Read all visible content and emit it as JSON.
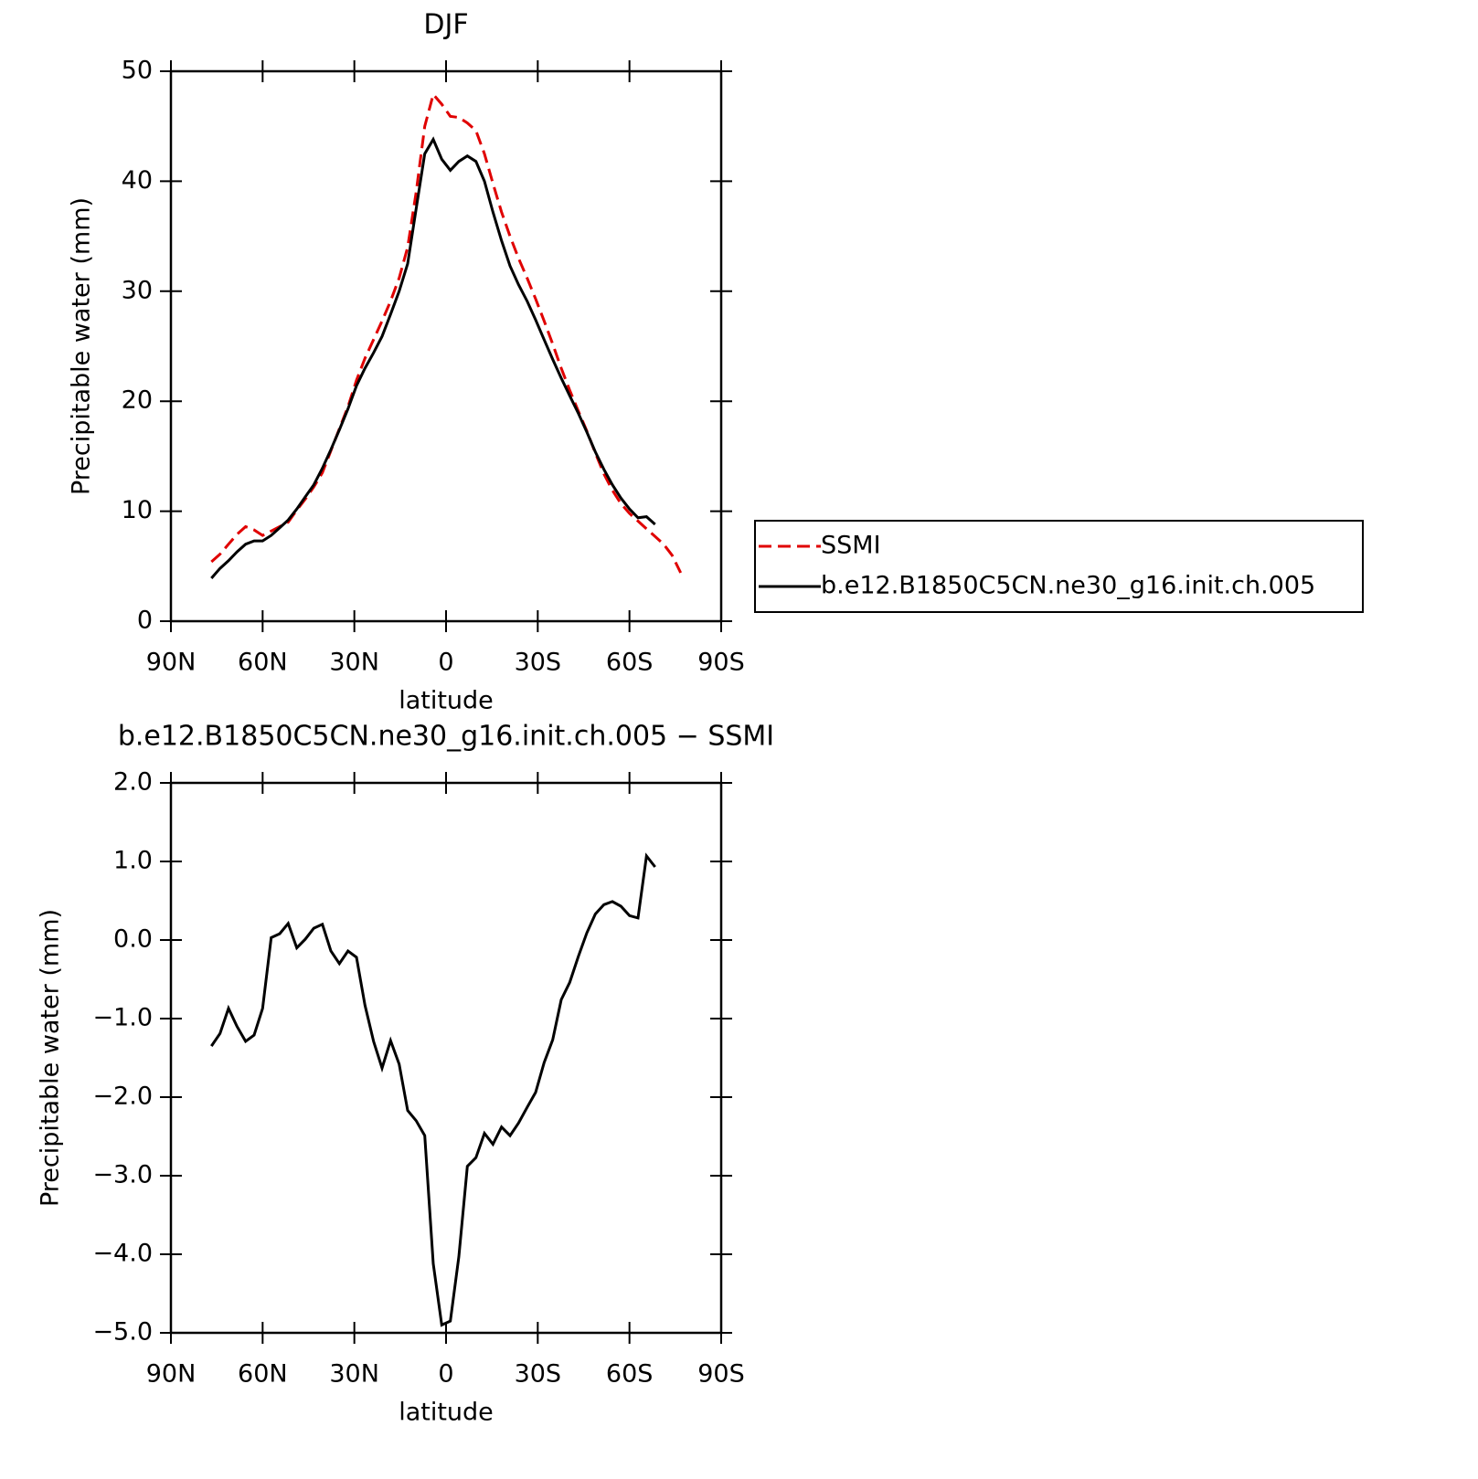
{
  "chart_data": [
    {
      "type": "line",
      "title": "DJF",
      "xlabel": "latitude",
      "ylabel": "Precipitable water (mm)",
      "x": [
        76.74,
        73.95,
        71.16,
        68.37,
        65.58,
        62.79,
        60.0,
        57.21,
        54.42,
        51.63,
        48.84,
        46.05,
        43.26,
        40.47,
        37.67,
        34.88,
        32.09,
        29.3,
        26.51,
        23.72,
        20.93,
        18.14,
        15.35,
        12.56,
        9.77,
        6.98,
        4.19,
        1.4,
        -1.4,
        -4.19,
        -6.98,
        -9.77,
        -12.56,
        -15.35,
        -18.14,
        -20.93,
        -23.72,
        -26.51,
        -29.3,
        -32.09,
        -34.88,
        -37.67,
        -40.47,
        -43.26,
        -46.05,
        -48.84,
        -51.63,
        -54.42,
        -57.21,
        -60.0,
        -62.79,
        -65.58,
        -68.37,
        -71.16,
        -73.95,
        -76.74
      ],
      "series": [
        {
          "name": "SSMI",
          "color": "#e00000",
          "line_style": "dashed",
          "values": [
            5.4,
            6.1,
            7.0,
            7.9,
            8.6,
            8.3,
            7.8,
            8.2,
            8.6,
            9.0,
            10.1,
            11.1,
            12.2,
            13.5,
            15.5,
            17.5,
            19.5,
            21.9,
            23.9,
            25.6,
            27.3,
            29.1,
            31.2,
            34.0,
            39.0,
            45.0,
            47.9,
            47.0,
            45.9,
            45.8,
            45.3,
            44.6,
            42.5,
            39.8,
            37.2,
            35.0,
            33.0,
            31.2,
            29.3,
            27.3,
            25.2,
            23.0,
            21.0,
            19.1,
            17.3,
            15.3,
            13.4,
            11.9,
            10.7,
            9.8,
            9.1,
            8.4,
            7.7,
            7.0,
            6.0,
            4.4
          ]
        },
        {
          "name": "b.e12.B1850C5CN.ne30_g16.init.ch.005",
          "color": "#000000",
          "line_style": "solid",
          "values": [
            3.9,
            4.8,
            5.5,
            6.3,
            7.0,
            7.3,
            7.3,
            7.8,
            8.5,
            9.2,
            10.2,
            11.3,
            12.4,
            13.9,
            15.6,
            17.4,
            19.3,
            21.4,
            23.0,
            24.4,
            25.9,
            27.9,
            30.0,
            32.5,
            37.5,
            42.5,
            43.8,
            42.0,
            41.0,
            41.8,
            42.3,
            41.8,
            40.0,
            37.2,
            34.6,
            32.3,
            30.6,
            29.1,
            27.4,
            25.6,
            23.8,
            22.1,
            20.5,
            18.9,
            17.2,
            15.4,
            13.8,
            12.4,
            11.2,
            10.2,
            9.4,
            9.5,
            8.8,
            null,
            null,
            null
          ]
        }
      ],
      "xlim": [
        90,
        -90
      ],
      "xticks": [
        {
          "value": 90,
          "label": "90N"
        },
        {
          "value": 60,
          "label": "60N"
        },
        {
          "value": 30,
          "label": "30N"
        },
        0,
        {
          "value": -30,
          "label": "30S"
        },
        {
          "value": -60,
          "label": "60S"
        },
        {
          "value": -90,
          "label": "90S"
        }
      ],
      "ylim": [
        0,
        50
      ],
      "yticks": [
        0,
        10,
        20,
        30,
        40,
        50
      ],
      "legend": "right"
    },
    {
      "type": "line",
      "title": "b.e12.B1850C5CN.ne30_g16.init.ch.005 − SSMI",
      "xlabel": "latitude",
      "ylabel": "Precipitable water (mm)",
      "x": [
        76.74,
        73.95,
        71.16,
        68.37,
        65.58,
        62.79,
        60.0,
        57.21,
        54.42,
        51.63,
        48.84,
        46.05,
        43.26,
        40.47,
        37.67,
        34.88,
        32.09,
        29.3,
        26.51,
        23.72,
        20.93,
        18.14,
        15.35,
        12.56,
        9.77,
        6.98,
        4.19,
        1.4,
        -1.4,
        -4.19,
        -6.98,
        -9.77,
        -12.56,
        -15.35,
        -18.14,
        -20.93,
        -23.72,
        -26.51,
        -29.3,
        -32.09,
        -34.88,
        -37.67,
        -40.47,
        -43.26,
        -46.05,
        -48.84,
        -51.63,
        -54.42,
        -57.21,
        -60.0,
        -62.79,
        -65.58,
        -68.37
      ],
      "series": [
        {
          "color": "#000000",
          "line_style": "solid",
          "values": [
            -1.35,
            -1.19,
            -0.87,
            -1.1,
            -1.29,
            -1.21,
            -0.87,
            0.03,
            0.08,
            0.21,
            -0.1,
            0.01,
            0.15,
            0.2,
            -0.14,
            -0.3,
            -0.14,
            -0.22,
            -0.83,
            -1.29,
            -1.63,
            -1.28,
            -1.58,
            -2.17,
            -2.3,
            -2.49,
            -4.12,
            -4.9,
            -4.85,
            -4.03,
            -2.88,
            -2.77,
            -2.46,
            -2.6,
            -2.38,
            -2.49,
            -2.33,
            -2.13,
            -1.94,
            -1.56,
            -1.27,
            -0.76,
            -0.54,
            -0.21,
            0.09,
            0.33,
            0.45,
            0.49,
            0.43,
            0.31,
            0.28,
            1.07,
            0.93
          ]
        }
      ],
      "xlim": [
        90,
        -90
      ],
      "xticks": [
        {
          "value": 90,
          "label": "90N"
        },
        {
          "value": 60,
          "label": "60N"
        },
        {
          "value": 30,
          "label": "30N"
        },
        0,
        {
          "value": -30,
          "label": "30S"
        },
        {
          "value": -60,
          "label": "60S"
        },
        {
          "value": -90,
          "label": "90S"
        }
      ],
      "ylim": [
        -5,
        2
      ],
      "yticks": [
        {
          "value": 2,
          "label": "2.0"
        },
        {
          "value": 1,
          "label": "1.0"
        },
        {
          "value": 0,
          "label": "0.0"
        },
        {
          "value": -1,
          "label": "−1.0"
        },
        {
          "value": -2,
          "label": "−2.0"
        },
        {
          "value": -3,
          "label": "−3.0"
        },
        {
          "value": -4,
          "label": "−4.0"
        },
        {
          "value": -5,
          "label": "−5.0"
        }
      ]
    }
  ]
}
